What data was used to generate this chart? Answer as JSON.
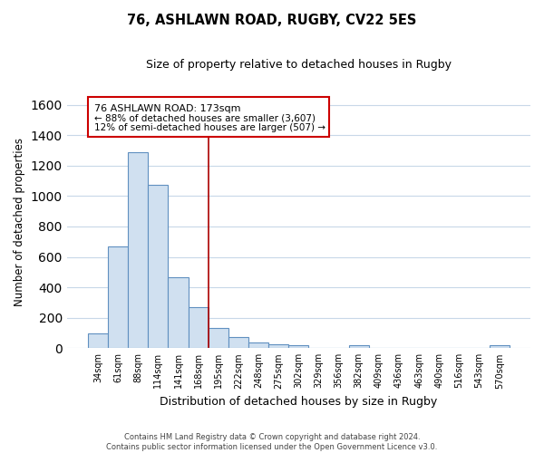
{
  "title": "76, ASHLAWN ROAD, RUGBY, CV22 5ES",
  "subtitle": "Size of property relative to detached houses in Rugby",
  "xlabel": "Distribution of detached houses by size in Rugby",
  "ylabel": "Number of detached properties",
  "categories": [
    "34sqm",
    "61sqm",
    "88sqm",
    "114sqm",
    "141sqm",
    "168sqm",
    "195sqm",
    "222sqm",
    "248sqm",
    "275sqm",
    "302sqm",
    "329sqm",
    "356sqm",
    "382sqm",
    "409sqm",
    "436sqm",
    "463sqm",
    "490sqm",
    "516sqm",
    "543sqm",
    "570sqm"
  ],
  "values": [
    100,
    670,
    1290,
    1075,
    465,
    270,
    130,
    75,
    35,
    25,
    20,
    0,
    0,
    20,
    0,
    0,
    0,
    0,
    0,
    0,
    20
  ],
  "bar_color": "#d0e0f0",
  "bar_edge_color": "#6090c0",
  "ylim": [
    0,
    1660
  ],
  "yticks": [
    0,
    200,
    400,
    600,
    800,
    1000,
    1200,
    1400,
    1600
  ],
  "property_line_color": "#aa0000",
  "annotation_text_line1": "76 ASHLAWN ROAD: 173sqm",
  "annotation_text_line2": "← 88% of detached houses are smaller (3,607)",
  "annotation_text_line3": "12% of semi-detached houses are larger (507) →",
  "footer_line1": "Contains HM Land Registry data © Crown copyright and database right 2024.",
  "footer_line2": "Contains public sector information licensed under the Open Government Licence v3.0.",
  "background_color": "#ffffff",
  "grid_color": "#c8d8e8",
  "figwidth": 6.0,
  "figheight": 5.0,
  "dpi": 100
}
